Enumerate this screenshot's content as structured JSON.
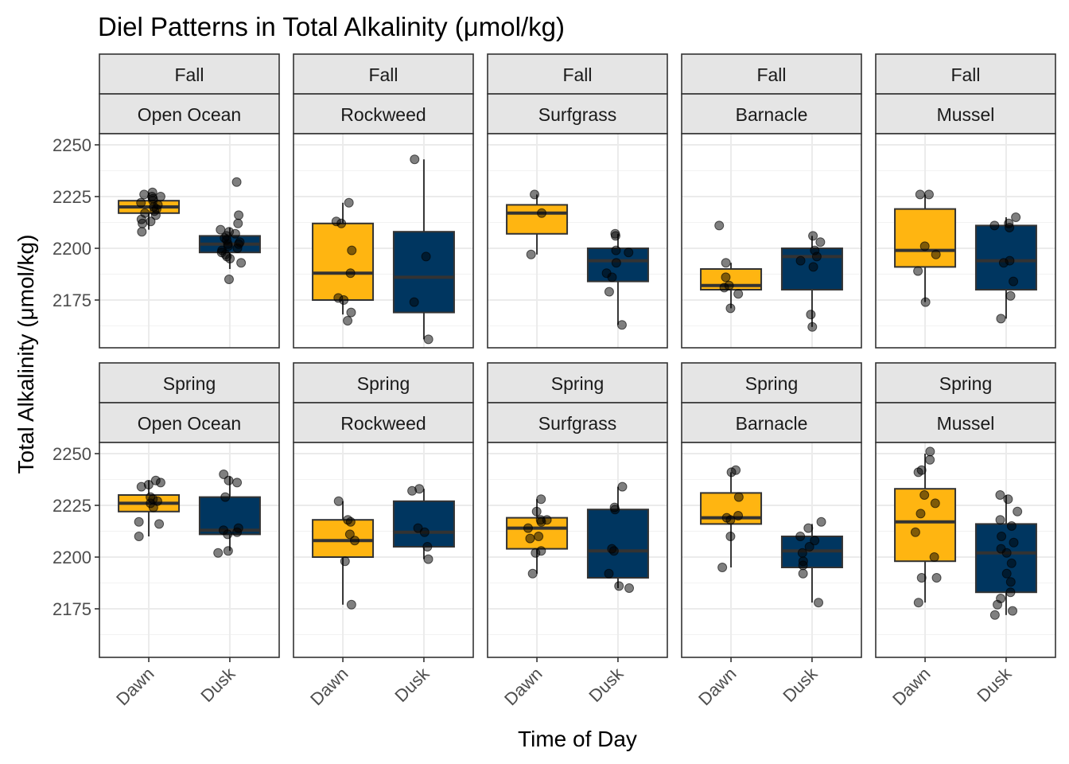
{
  "chart_data": {
    "type": "box",
    "title": "Diel Patterns in Total Alkalinity (μmol/kg)",
    "xlabel": "Time of Day",
    "ylabel": "Total Alkalinity (μmol/kg)",
    "ylim": [
      2150,
      2250
    ],
    "yticks": [
      2175,
      2200,
      2225,
      2250
    ],
    "categories": [
      "Dawn",
      "Dusk"
    ],
    "colors": {
      "Dawn": "#FFB511",
      "Dusk": "#003660"
    },
    "grid": true,
    "legend": "none",
    "facets": [
      {
        "season": "Fall",
        "zone": "Open Ocean",
        "boxes": [
          {
            "time": "Dawn",
            "min": 2209,
            "q1": 2217,
            "median": 2220,
            "q3": 2223,
            "max": 2227,
            "points": [
              2227,
              2226,
              2225,
              2225,
              2224,
              2223,
              2222,
              2221,
              2220,
              2219,
              2218,
              2217,
              2216,
              2214,
              2213,
              2212,
              2208
            ]
          },
          {
            "time": "Dusk",
            "min": 2190,
            "q1": 2198,
            "median": 2202,
            "q3": 2206,
            "max": 2210,
            "points": [
              2232,
              2216,
              2212,
              2209,
              2208,
              2207,
              2206,
              2205,
              2204,
              2203,
              2202,
              2202,
              2201,
              2200,
              2199,
              2198,
              2197,
              2196,
              2195,
              2193,
              2185
            ]
          }
        ]
      },
      {
        "season": "Fall",
        "zone": "Rockweed",
        "boxes": [
          {
            "time": "Dawn",
            "min": 2168,
            "q1": 2175,
            "median": 2188,
            "q3": 2212,
            "max": 2222,
            "points": [
              2222,
              2213,
              2212,
              2199,
              2188,
              2176,
              2175,
              2169,
              2165
            ]
          },
          {
            "time": "Dusk",
            "min": 2156,
            "q1": 2169,
            "median": 2186,
            "q3": 2208,
            "max": 2243,
            "points": [
              2243,
              2196,
              2174,
              2156
            ]
          }
        ]
      },
      {
        "season": "Fall",
        "zone": "Surfgrass",
        "boxes": [
          {
            "time": "Dawn",
            "min": 2197,
            "q1": 2207,
            "median": 2217,
            "q3": 2221,
            "max": 2226,
            "points": [
              2226,
              2217,
              2197
            ]
          },
          {
            "time": "Dusk",
            "min": 2163,
            "q1": 2184,
            "median": 2194,
            "q3": 2200,
            "max": 2207,
            "points": [
              2207,
              2206,
              2199,
              2198,
              2193,
              2188,
              2186,
              2179,
              2163
            ]
          }
        ]
      },
      {
        "season": "Fall",
        "zone": "Barnacle",
        "boxes": [
          {
            "time": "Dawn",
            "min": 2171,
            "q1": 2180,
            "median": 2182,
            "q3": 2190,
            "max": 2193,
            "points": [
              2211,
              2193,
              2186,
              2182,
              2181,
              2178,
              2171
            ]
          },
          {
            "time": "Dusk",
            "min": 2162,
            "q1": 2180,
            "median": 2196,
            "q3": 2200,
            "max": 2206,
            "points": [
              2206,
              2203,
              2199,
              2196,
              2194,
              2191,
              2168,
              2162
            ]
          }
        ]
      },
      {
        "season": "Fall",
        "zone": "Mussel",
        "boxes": [
          {
            "time": "Dawn",
            "min": 2174,
            "q1": 2191,
            "median": 2199,
            "q3": 2219,
            "max": 2226,
            "points": [
              2226,
              2226,
              2201,
              2197,
              2189,
              2174
            ]
          },
          {
            "time": "Dusk",
            "min": 2166,
            "q1": 2180,
            "median": 2194,
            "q3": 2211,
            "max": 2215,
            "points": [
              2215,
              2212,
              2211,
              2210,
              2194,
              2193,
              2184,
              2177,
              2166
            ]
          }
        ]
      },
      {
        "season": "Spring",
        "zone": "Open Ocean",
        "boxes": [
          {
            "time": "Dawn",
            "min": 2210,
            "q1": 2222,
            "median": 2226,
            "q3": 2230,
            "max": 2237,
            "points": [
              2237,
              2236,
              2235,
              2234,
              2229,
              2228,
              2227,
              2226,
              2224,
              2217,
              2216,
              2210
            ]
          },
          {
            "time": "Dusk",
            "min": 2203,
            "q1": 2211,
            "median": 2213,
            "q3": 2229,
            "max": 2239,
            "points": [
              2240,
              2237,
              2236,
              2229,
              2214,
              2213,
              2212,
              2211,
              2203,
              2202
            ]
          }
        ]
      },
      {
        "season": "Spring",
        "zone": "Rockweed",
        "boxes": [
          {
            "time": "Dawn",
            "min": 2177,
            "q1": 2200,
            "median": 2208,
            "q3": 2218,
            "max": 2227,
            "points": [
              2227,
              2218,
              2217,
              2211,
              2208,
              2198,
              2177
            ]
          },
          {
            "time": "Dusk",
            "min": 2199,
            "q1": 2205,
            "median": 2212,
            "q3": 2227,
            "max": 2233,
            "points": [
              2233,
              2232,
              2214,
              2212,
              2205,
              2199
            ]
          }
        ]
      },
      {
        "season": "Spring",
        "zone": "Surfgrass",
        "boxes": [
          {
            "time": "Dawn",
            "min": 2192,
            "q1": 2204,
            "median": 2214,
            "q3": 2219,
            "max": 2228,
            "points": [
              2228,
              2222,
              2218,
              2218,
              2217,
              2214,
              2210,
              2209,
              2203,
              2202,
              2192
            ]
          },
          {
            "time": "Dusk",
            "min": 2185,
            "q1": 2190,
            "median": 2203,
            "q3": 2223,
            "max": 2234,
            "points": [
              2234,
              2224,
              2223,
              2204,
              2203,
              2192,
              2186,
              2185
            ]
          }
        ]
      },
      {
        "season": "Spring",
        "zone": "Barnacle",
        "boxes": [
          {
            "time": "Dawn",
            "min": 2195,
            "q1": 2216,
            "median": 2219,
            "q3": 2231,
            "max": 2241,
            "points": [
              2242,
              2241,
              2229,
              2220,
              2219,
              2218,
              2210,
              2195
            ]
          },
          {
            "time": "Dusk",
            "min": 2178,
            "q1": 2195,
            "median": 2203,
            "q3": 2210,
            "max": 2216,
            "points": [
              2217,
              2214,
              2210,
              2208,
              2205,
              2202,
              2198,
              2196,
              2192,
              2178
            ]
          }
        ]
      },
      {
        "season": "Spring",
        "zone": "Mussel",
        "boxes": [
          {
            "time": "Dawn",
            "min": 2178,
            "q1": 2198,
            "median": 2217,
            "q3": 2233,
            "max": 2250,
            "points": [
              2251,
              2247,
              2242,
              2241,
              2230,
              2226,
              2221,
              2212,
              2200,
              2190,
              2190,
              2178
            ]
          },
          {
            "time": "Dusk",
            "min": 2172,
            "q1": 2183,
            "median": 2202,
            "q3": 2216,
            "max": 2230,
            "points": [
              2230,
              2228,
              2222,
              2218,
              2215,
              2210,
              2207,
              2204,
              2202,
              2197,
              2192,
              2188,
              2183,
              2180,
              2177,
              2174,
              2172
            ]
          }
        ]
      }
    ]
  }
}
